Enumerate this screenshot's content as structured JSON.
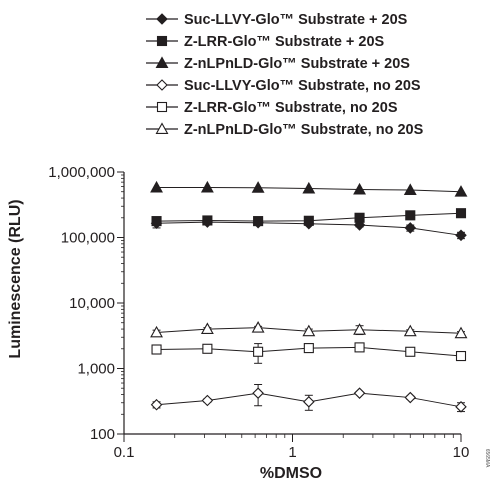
{
  "chart_data": {
    "type": "line",
    "xlabel": "%DMSO",
    "ylabel": "Luminescence (RLU)",
    "xscale": "log",
    "yscale": "log",
    "xlim": [
      0.1,
      10
    ],
    "ylim": [
      100,
      1000000
    ],
    "x_ticks": [
      0.1,
      1,
      10
    ],
    "x_tick_labels": [
      "0.1",
      "1",
      "10"
    ],
    "y_ticks": [
      100,
      1000,
      10000,
      100000,
      1000000
    ],
    "y_tick_labels": [
      "100",
      "1,000",
      "10,000",
      "100,000",
      "1,000,000"
    ],
    "x": [
      0.156,
      0.3125,
      0.625,
      1.25,
      2.5,
      5,
      10
    ],
    "legend_position": "top",
    "grid": false,
    "series": [
      {
        "name": "Suc-LLVY-Glo™ Substrate + 20S",
        "marker": "diamond-filled",
        "values": [
          165000,
          172000,
          168000,
          162000,
          155000,
          140000,
          108000
        ],
        "errors": [
          25000,
          8000,
          8000,
          8000,
          10000,
          15000,
          12000
        ]
      },
      {
        "name": "Z-LRR-Glo™ Substrate + 20S",
        "marker": "square-filled",
        "values": [
          178000,
          182000,
          178000,
          180000,
          200000,
          218000,
          235000
        ],
        "errors": [
          0,
          0,
          0,
          0,
          0,
          0,
          0
        ]
      },
      {
        "name": "Z-nLPnLD-Glo™ Substrate + 20S",
        "marker": "triangle-filled",
        "values": [
          580000,
          580000,
          575000,
          560000,
          540000,
          530000,
          500000
        ],
        "errors": [
          0,
          0,
          0,
          0,
          0,
          0,
          0
        ]
      },
      {
        "name": "Suc-LLVY-Glo™ Substrate, no 20S",
        "marker": "diamond-open",
        "values": [
          280,
          325,
          420,
          310,
          420,
          360,
          260
        ],
        "errors": [
          30,
          20,
          150,
          80,
          20,
          20,
          40
        ]
      },
      {
        "name": "Z-LRR-Glo™ Substrate, no 20S",
        "marker": "square-open",
        "values": [
          1950,
          2000,
          1800,
          2050,
          2100,
          1800,
          1550
        ],
        "errors": [
          150,
          100,
          600,
          100,
          150,
          100,
          100
        ]
      },
      {
        "name": "Z-nLPnLD-Glo™ Substrate, no 20S",
        "marker": "triangle-open",
        "values": [
          3550,
          4000,
          4200,
          3700,
          3900,
          3700,
          3450
        ],
        "errors": [
          300,
          200,
          200,
          300,
          600,
          200,
          200
        ]
      }
    ],
    "figure_code": "6565MA"
  }
}
